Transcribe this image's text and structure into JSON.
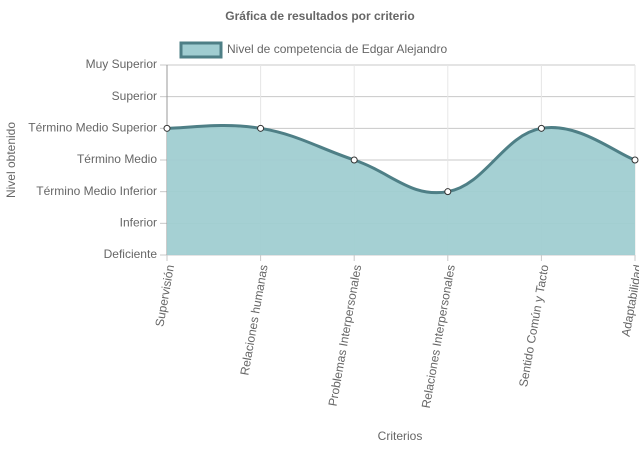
{
  "chart_data": {
    "type": "area",
    "title": "Gráfica de resultados por criterio",
    "x_label": "Criterios",
    "y_label": "Nivel obtenido",
    "categories": [
      "Supervisión",
      "Relaciones humanas",
      "Problemas Interpersonales",
      "Relaciones Interpersonales",
      "Sentido Común y Tacto",
      "Adaptabilidad"
    ],
    "series": [
      {
        "name": "Nivel de competencia de Edgar Alejandro",
        "color": "#4e7f86",
        "fill_color": "#a0cdd1",
        "values": [
          4,
          4,
          3,
          2,
          4,
          3
        ]
      }
    ],
    "ylim": [
      0,
      6
    ],
    "yticks": [
      {
        "value": 0,
        "label": "Deficiente"
      },
      {
        "value": 1,
        "label": "Inferior"
      },
      {
        "value": 2,
        "label": "Término Medio Inferior"
      },
      {
        "value": 3,
        "label": "Término Medio"
      },
      {
        "value": 4,
        "label": "Término Medio Superior"
      },
      {
        "value": 5,
        "label": "Superior"
      },
      {
        "value": 6,
        "label": "Muy Superior"
      }
    ],
    "grid": true,
    "legend": "top"
  }
}
